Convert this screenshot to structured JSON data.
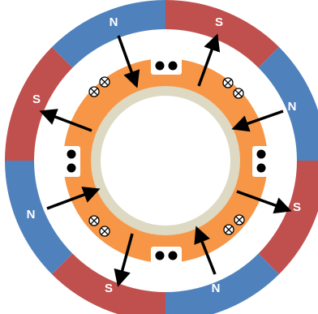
{
  "poles": [
    {
      "label": "N"
    },
    {
      "label": "S"
    },
    {
      "label": "N"
    },
    {
      "label": "S"
    },
    {
      "label": "N"
    },
    {
      "label": "S"
    },
    {
      "label": "N"
    },
    {
      "label": "S"
    }
  ]
}
